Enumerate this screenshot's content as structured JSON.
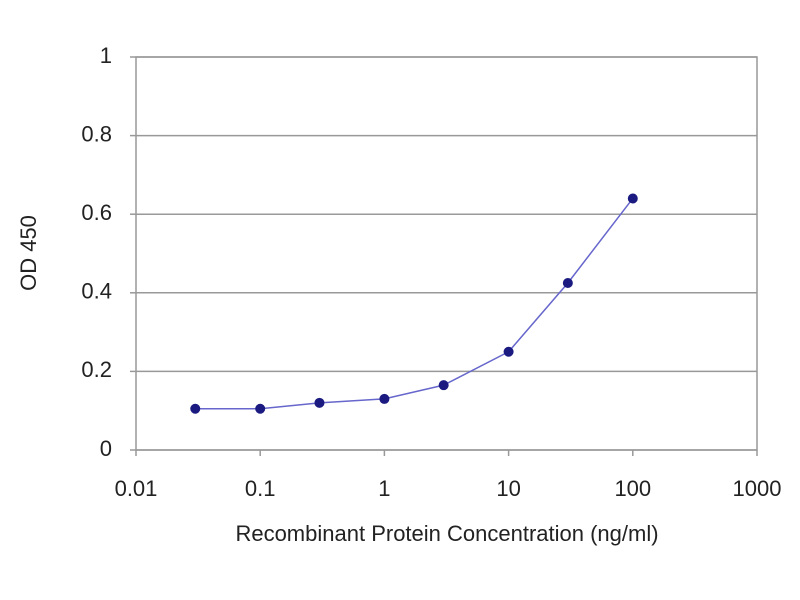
{
  "chart_data": {
    "type": "line",
    "x_label": "Recombinant Protein Concentration (ng/ml)",
    "y_label": "OD 450",
    "x": [
      0.03,
      0.1,
      0.3,
      1,
      3,
      10,
      30,
      100
    ],
    "series": [
      {
        "color": "#1a1a80",
        "line_color": "#6666cc",
        "values": [
          0.105,
          0.105,
          0.12,
          0.13,
          0.165,
          0.25,
          0.425,
          0.64
        ]
      }
    ],
    "xlim": [
      0.01,
      1000
    ],
    "xticks": [
      0.01,
      0.1,
      1,
      10,
      100,
      1000
    ],
    "xlog": true,
    "ylim": [
      0,
      1
    ],
    "yticks": [
      0,
      0.2,
      0.4,
      0.6,
      0.8,
      1
    ],
    "grid": true
  }
}
